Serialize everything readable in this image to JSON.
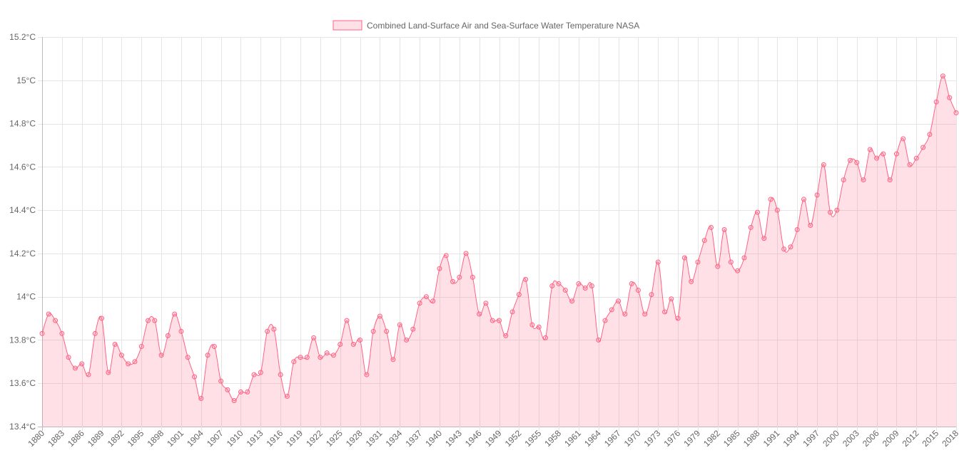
{
  "chart_data": {
    "type": "area",
    "series": [
      {
        "name": "Combined Land-Surface Air and Sea-Surface Water Temperature NASA",
        "color": "#ff6384",
        "fill": "rgba(255,99,132,0.2)",
        "years": [
          1880,
          1881,
          1882,
          1883,
          1884,
          1885,
          1886,
          1887,
          1888,
          1889,
          1890,
          1891,
          1892,
          1893,
          1894,
          1895,
          1896,
          1897,
          1898,
          1899,
          1900,
          1901,
          1902,
          1903,
          1904,
          1905,
          1906,
          1907,
          1908,
          1909,
          1910,
          1911,
          1912,
          1913,
          1914,
          1915,
          1916,
          1917,
          1918,
          1919,
          1920,
          1921,
          1922,
          1923,
          1924,
          1925,
          1926,
          1927,
          1928,
          1929,
          1930,
          1931,
          1932,
          1933,
          1934,
          1935,
          1936,
          1937,
          1938,
          1939,
          1940,
          1941,
          1942,
          1943,
          1944,
          1945,
          1946,
          1947,
          1948,
          1949,
          1950,
          1951,
          1952,
          1953,
          1954,
          1955,
          1956,
          1957,
          1958,
          1959,
          1960,
          1961,
          1962,
          1963,
          1964,
          1965,
          1966,
          1967,
          1968,
          1969,
          1970,
          1971,
          1972,
          1973,
          1974,
          1975,
          1976,
          1977,
          1978,
          1979,
          1980,
          1981,
          1982,
          1983,
          1984,
          1985,
          1986,
          1987,
          1988,
          1989,
          1990,
          1991,
          1992,
          1993,
          1994,
          1995,
          1996,
          1997,
          1998,
          1999,
          2000,
          2001,
          2002,
          2003,
          2004,
          2005,
          2006,
          2007,
          2008,
          2009,
          2010,
          2011,
          2012,
          2013,
          2014,
          2015,
          2016,
          2017,
          2018
        ],
        "values": [
          13.83,
          13.92,
          13.89,
          13.83,
          13.72,
          13.67,
          13.69,
          13.64,
          13.83,
          13.9,
          13.65,
          13.78,
          13.73,
          13.69,
          13.7,
          13.77,
          13.89,
          13.89,
          13.73,
          13.82,
          13.92,
          13.84,
          13.72,
          13.63,
          13.53,
          13.73,
          13.77,
          13.61,
          13.57,
          13.52,
          13.56,
          13.56,
          13.64,
          13.65,
          13.84,
          13.85,
          13.64,
          13.54,
          13.7,
          13.72,
          13.72,
          13.81,
          13.72,
          13.74,
          13.73,
          13.78,
          13.89,
          13.78,
          13.8,
          13.64,
          13.84,
          13.91,
          13.84,
          13.71,
          13.87,
          13.8,
          13.85,
          13.97,
          14.0,
          13.98,
          14.13,
          14.19,
          14.07,
          14.09,
          14.2,
          14.09,
          13.92,
          13.97,
          13.89,
          13.89,
          13.82,
          13.93,
          14.01,
          14.08,
          13.87,
          13.86,
          13.81,
          14.05,
          14.06,
          14.03,
          13.98,
          14.06,
          14.04,
          14.05,
          13.8,
          13.89,
          13.94,
          13.98,
          13.92,
          14.06,
          14.03,
          13.92,
          14.01,
          14.16,
          13.93,
          13.99,
          13.9,
          14.18,
          14.07,
          14.16,
          14.26,
          14.32,
          14.14,
          14.31,
          14.16,
          14.12,
          14.18,
          14.32,
          14.39,
          14.27,
          14.45,
          14.4,
          14.22,
          14.23,
          14.31,
          14.45,
          14.33,
          14.47,
          14.61,
          14.39,
          14.4,
          14.54,
          14.63,
          14.62,
          14.54,
          14.68,
          14.64,
          14.66,
          14.54,
          14.66,
          14.73,
          14.61,
          14.64,
          14.69,
          14.75,
          14.9,
          15.02,
          14.92,
          14.85
        ]
      }
    ],
    "y_ticks": [
      "13.4°C",
      "13.6°C",
      "13.8°C",
      "14°C",
      "14.2°C",
      "14.4°C",
      "14.6°C",
      "14.8°C",
      "15°C",
      "15.2°C"
    ],
    "ylim": [
      13.4,
      15.2
    ],
    "x_ticks": [
      "1880",
      "1883",
      "1886",
      "1889",
      "1892",
      "1895",
      "1898",
      "1901",
      "1904",
      "1907",
      "1910",
      "1913",
      "1916",
      "1919",
      "1922",
      "1925",
      "1928",
      "1931",
      "1934",
      "1937",
      "1940",
      "1943",
      "1946",
      "1949",
      "1952",
      "1955",
      "1958",
      "1961",
      "1964",
      "1967",
      "1970",
      "1973",
      "1976",
      "1979",
      "1982",
      "1985",
      "1988",
      "1991",
      "1994",
      "1997",
      "2000",
      "2003",
      "2006",
      "2009",
      "2012",
      "2015",
      "2018"
    ],
    "grid": true,
    "legend_position": "top"
  }
}
